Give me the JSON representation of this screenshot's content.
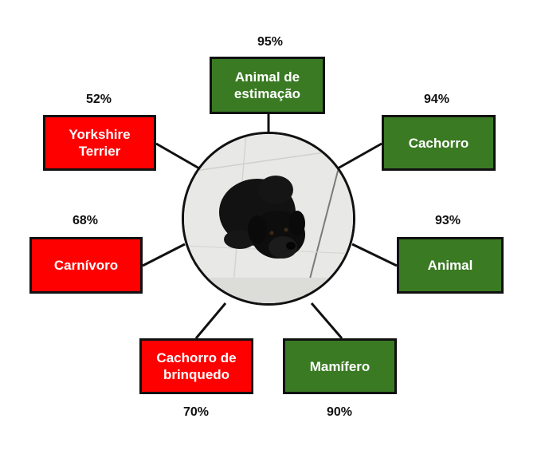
{
  "center_image": {
    "subject": "black-dog-photo"
  },
  "colors": {
    "positive": "#3a7a23",
    "negative": "#ff0000",
    "border": "#111111",
    "text": "#ffffff"
  },
  "labels": [
    {
      "id": "pet",
      "text": "Animal de\nestimação",
      "score": "95%",
      "status": "positive"
    },
    {
      "id": "dog",
      "text": "Cachorro",
      "score": "94%",
      "status": "positive"
    },
    {
      "id": "animal",
      "text": "Animal",
      "score": "93%",
      "status": "positive"
    },
    {
      "id": "mammal",
      "text": "Mamífero",
      "score": "90%",
      "status": "positive"
    },
    {
      "id": "toy-dog",
      "text": "Cachorro de\nbrinquedo",
      "score": "70%",
      "status": "negative"
    },
    {
      "id": "carnivore",
      "text": "Carnívoro",
      "score": "68%",
      "status": "negative"
    },
    {
      "id": "yorkshire",
      "text": "Yorkshire\nTerrier",
      "score": "52%",
      "status": "negative"
    }
  ]
}
